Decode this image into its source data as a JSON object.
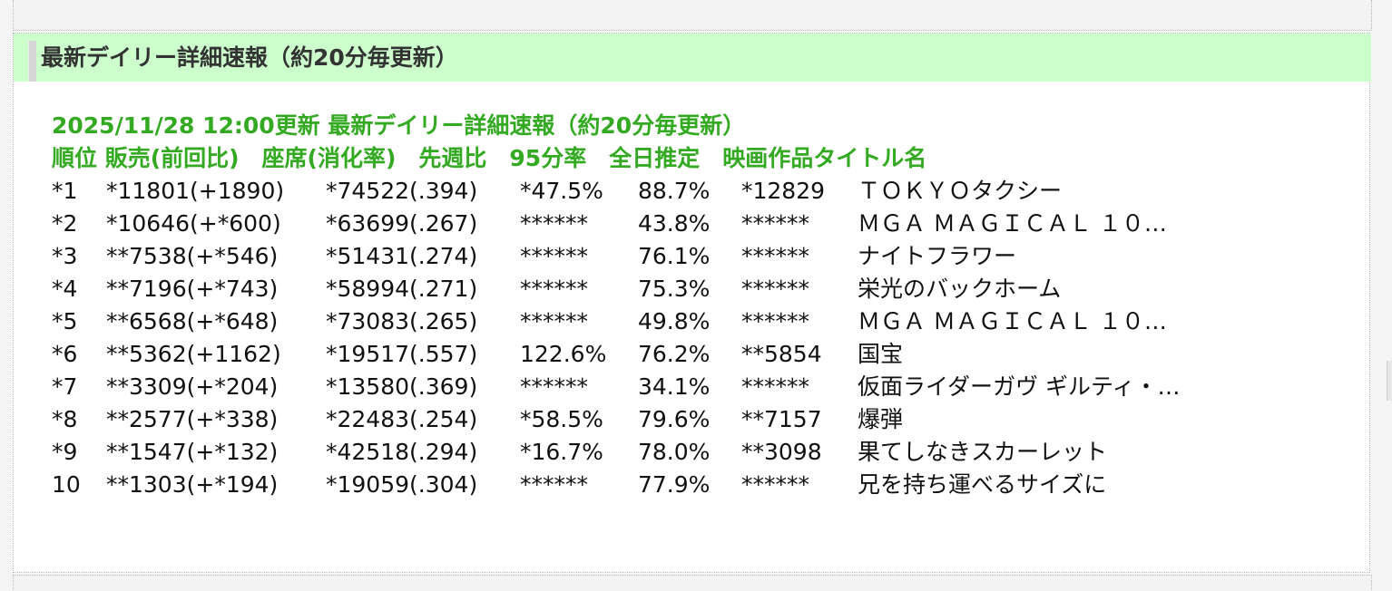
{
  "panel": {
    "title": "最新デイリー詳細速報（約20分毎更新）"
  },
  "report": {
    "timestamp_line": "2025/11/28 12:00更新 最新デイリー詳細速報（約20分毎更新）",
    "columns_line": "順位 販売(前回比)　座席(消化率)　先週比　95分率　全日推定　映画作品タイトル名",
    "rows": [
      {
        "rank": "*1",
        "sales": "*11801(+1890)",
        "seats": "*74522(.394)",
        "week": "*47.5%",
        "rate": "88.7%",
        "estimate": "*12829",
        "title": "ＴＯＫＹＯタクシー"
      },
      {
        "rank": "*2",
        "sales": "*10646(+*600)",
        "seats": "*63699(.267)",
        "week": "******",
        "rate": "43.8%",
        "estimate": "******",
        "title": "ＭＧＡ ＭＡＧＩＣＡＬ １０…"
      },
      {
        "rank": "*3",
        "sales": "**7538(+*546)",
        "seats": "*51431(.274)",
        "week": "******",
        "rate": "76.1%",
        "estimate": "******",
        "title": "ナイトフラワー"
      },
      {
        "rank": "*4",
        "sales": "**7196(+*743)",
        "seats": "*58994(.271)",
        "week": "******",
        "rate": "75.3%",
        "estimate": "******",
        "title": "栄光のバックホーム"
      },
      {
        "rank": "*5",
        "sales": "**6568(+*648)",
        "seats": "*73083(.265)",
        "week": "******",
        "rate": "49.8%",
        "estimate": "******",
        "title": "ＭＧＡ ＭＡＧＩＣＡＬ １０…"
      },
      {
        "rank": "*6",
        "sales": "**5362(+1162)",
        "seats": "*19517(.557)",
        "week": "122.6%",
        "rate": "76.2%",
        "estimate": "**5854",
        "title": "国宝"
      },
      {
        "rank": "*7",
        "sales": "**3309(+*204)",
        "seats": "*13580(.369)",
        "week": "******",
        "rate": "34.1%",
        "estimate": "******",
        "title": "仮面ライダーガヴ ギルティ・…"
      },
      {
        "rank": "*8",
        "sales": "**2577(+*338)",
        "seats": "*22483(.254)",
        "week": "*58.5%",
        "rate": "79.6%",
        "estimate": "**7157",
        "title": "爆弾"
      },
      {
        "rank": "*9",
        "sales": "**1547(+*132)",
        "seats": "*42518(.294)",
        "week": "*16.7%",
        "rate": "78.0%",
        "estimate": "**3098",
        "title": "果てしなきスカーレット"
      },
      {
        "rank": "10",
        "sales": "**1303(+*194)",
        "seats": "*19059(.304)",
        "week": "******",
        "rate": "77.9%",
        "estimate": "******",
        "title": "兄を持ち運べるサイズに"
      }
    ]
  },
  "colors": {
    "header_bg": "#ccffcc",
    "accent_green": "#33aa22"
  }
}
